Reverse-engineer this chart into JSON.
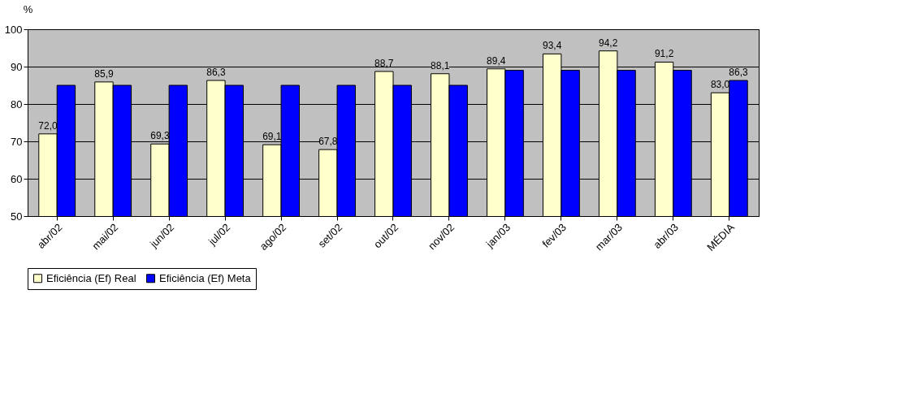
{
  "chart_data": {
    "type": "bar",
    "ylabel": "%",
    "categories": [
      "abr/02",
      "mai/02",
      "jun/02",
      "jul/02",
      "ago/02",
      "set/02",
      "out/02",
      "nov/02",
      "jan/03",
      "fev/03",
      "mar/03",
      "abr/03",
      "MÉDIA"
    ],
    "ylim": [
      50,
      100
    ],
    "yticks": [
      50,
      60,
      70,
      80,
      90,
      100
    ],
    "grid": "y",
    "legend": "bottom",
    "series": [
      {
        "name": "Eficiência (Ef) Real",
        "color": "#ffffcc",
        "values": [
          72.0,
          85.9,
          69.3,
          86.3,
          69.1,
          67.8,
          88.7,
          88.1,
          89.4,
          93.4,
          94.2,
          91.2,
          83.0
        ],
        "value_labels": [
          "72,0",
          "85,9",
          "69,3",
          "86,3",
          "69,1",
          "67,8",
          "88,7",
          "88,1",
          "89,4",
          "93,4",
          "94,2",
          "91,2",
          "83,0"
        ]
      },
      {
        "name": "Eficiência (Ef) Meta",
        "color": "#0000ff",
        "values": [
          85,
          85,
          85,
          85,
          85,
          85,
          85,
          85,
          89,
          89,
          89,
          89,
          86.3
        ],
        "value_labels": [
          null,
          null,
          null,
          null,
          null,
          null,
          null,
          null,
          null,
          null,
          null,
          null,
          "86,3"
        ]
      }
    ]
  }
}
